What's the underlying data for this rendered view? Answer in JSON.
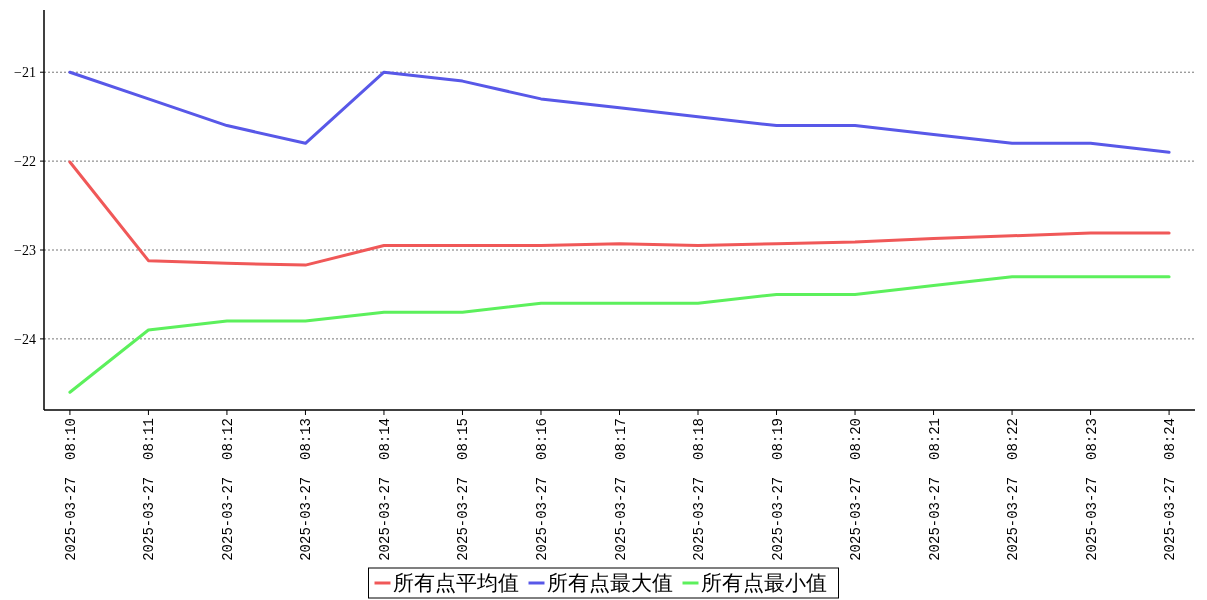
{
  "chart_data": {
    "type": "line",
    "categories": [
      "2025-03-27  08:10",
      "2025-03-27  08:11",
      "2025-03-27  08:12",
      "2025-03-27  08:13",
      "2025-03-27  08:14",
      "2025-03-27  08:15",
      "2025-03-27  08:16",
      "2025-03-27  08:17",
      "2025-03-27  08:18",
      "2025-03-27  08:19",
      "2025-03-27  08:20",
      "2025-03-27  08:21",
      "2025-03-27  08:22",
      "2025-03-27  08:23",
      "2025-03-27  08:24"
    ],
    "series": [
      {
        "name": "所有点平均值",
        "color": "#f05858",
        "values": [
          -22.01,
          -23.12,
          -23.15,
          -23.17,
          -22.95,
          -22.95,
          -22.95,
          -22.93,
          -22.95,
          -22.93,
          -22.91,
          -22.87,
          -22.84,
          -22.81,
          -22.81
        ]
      },
      {
        "name": "所有点最大值",
        "color": "#5858e8",
        "values": [
          -21.0,
          -21.3,
          -21.6,
          -21.8,
          -21.0,
          -21.1,
          -21.3,
          -21.4,
          -21.5,
          -21.6,
          -21.6,
          -21.7,
          -21.8,
          -21.8,
          -21.9
        ]
      },
      {
        "name": "所有点最小值",
        "color": "#5cf05c",
        "values": [
          -24.6,
          -23.9,
          -23.8,
          -23.8,
          -23.7,
          -23.7,
          -23.6,
          -23.6,
          -23.6,
          -23.5,
          -23.5,
          -23.4,
          -23.3,
          -23.3,
          -23.3
        ]
      }
    ],
    "ylim": [
      -24.8,
      -20.3
    ],
    "yticks": [
      -24,
      -23,
      -22,
      -21
    ],
    "grid": "y",
    "legend": "bottom",
    "marker": "none",
    "line_style": "solid"
  }
}
